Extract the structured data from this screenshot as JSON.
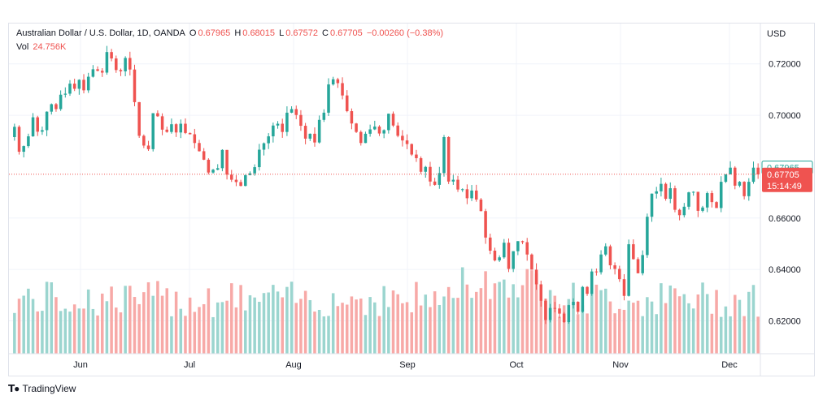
{
  "header": {
    "symbol": "Australian Dollar / U.S. Dollar, 1D, OANDA",
    "open_label": "O",
    "open": "0.67965",
    "high_label": "H",
    "high": "0.68015",
    "low_label": "L",
    "low": "0.67572",
    "close_label": "C",
    "close": "0.67705",
    "change": "−0.00260 (−0.38%)",
    "vol_label": "Vol",
    "vol": "24.756K"
  },
  "axis": {
    "currency": "USD"
  },
  "price_badges": {
    "open": "0.67965",
    "close": "0.67705",
    "countdown": "15:14:49"
  },
  "footer": {
    "brand": "TradingView"
  },
  "colors": {
    "up": "#26a69a",
    "down": "#ef5350",
    "up_vol": "#9bd5cf",
    "down_vol": "#f7a9a7",
    "grid": "#f0f3fa"
  },
  "chart_data": {
    "type": "candlestick",
    "title": "Australian Dollar / U.S. Dollar, 1D, OANDA",
    "y_ticks": [
      "0.72000",
      "0.70000",
      "0.66000",
      "0.64000",
      "0.62000"
    ],
    "ylim": [
      0.6072,
      0.7357
    ],
    "x_ticks": [
      "Jun",
      "Jul",
      "Aug",
      "Sep",
      "Oct",
      "Nov",
      "Dec"
    ],
    "last_close": 0.67705,
    "closes": [
      0.6955,
      0.6858,
      0.688,
      0.6918,
      0.6992,
      0.6936,
      0.6942,
      0.7014,
      0.7043,
      0.7024,
      0.708,
      0.7084,
      0.7123,
      0.7103,
      0.7138,
      0.7097,
      0.715,
      0.7179,
      0.7173,
      0.7166,
      0.7246,
      0.7221,
      0.7176,
      0.7171,
      0.7223,
      0.7178,
      0.7051,
      0.692,
      0.6882,
      0.6868,
      0.7008,
      0.6996,
      0.6944,
      0.6935,
      0.6965,
      0.6933,
      0.6967,
      0.6931,
      0.6926,
      0.6892,
      0.686,
      0.6827,
      0.6777,
      0.6788,
      0.6794,
      0.6865,
      0.6769,
      0.6749,
      0.674,
      0.6725,
      0.6767,
      0.6774,
      0.6798,
      0.6866,
      0.6891,
      0.6918,
      0.696,
      0.6967,
      0.6935,
      0.701,
      0.7024,
      0.7001,
      0.6959,
      0.6909,
      0.6928,
      0.6894,
      0.6982,
      0.701,
      0.712,
      0.714,
      0.7125,
      0.7077,
      0.7016,
      0.6968,
      0.6935,
      0.6892,
      0.6928,
      0.6945,
      0.6956,
      0.6929,
      0.6942,
      0.7006,
      0.696,
      0.692,
      0.6902,
      0.6888,
      0.6847,
      0.6833,
      0.678,
      0.6799,
      0.6742,
      0.6729,
      0.6775,
      0.6915,
      0.6742,
      0.6749,
      0.6711,
      0.6712,
      0.6677,
      0.6707,
      0.6672,
      0.6627,
      0.6524,
      0.6473,
      0.6435,
      0.6447,
      0.6504,
      0.6402,
      0.6471,
      0.651,
      0.6506,
      0.6458,
      0.6399,
      0.6342,
      0.6278,
      0.6203,
      0.625,
      0.6248,
      0.6228,
      0.6195,
      0.6261,
      0.6274,
      0.6235,
      0.6332,
      0.6305,
      0.6392,
      0.6389,
      0.6458,
      0.649,
      0.6416,
      0.6402,
      0.6362,
      0.6297,
      0.6498,
      0.644,
      0.6385,
      0.6456,
      0.6605,
      0.6695,
      0.6704,
      0.6733,
      0.6675,
      0.6716,
      0.6632,
      0.6611,
      0.6644,
      0.67,
      0.6702,
      0.6628,
      0.6641,
      0.6697,
      0.6662,
      0.6639,
      0.6741,
      0.677,
      0.6796,
      0.6726,
      0.6741,
      0.6685,
      0.6741,
      0.6796,
      0.677
    ]
  }
}
